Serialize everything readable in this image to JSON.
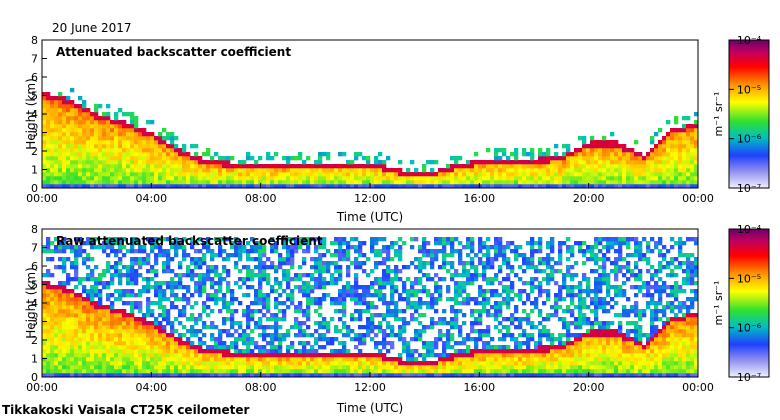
{
  "chart_data": [
    {
      "type": "heatmap",
      "title": "Attenuated backscatter coefficient",
      "date": "20 June 2017",
      "xlabel": "Time (UTC)",
      "ylabel": "Height (km)",
      "xlim_hours": [
        0,
        24
      ],
      "ylim_km": [
        0,
        8
      ],
      "xticks": [
        "00:00",
        "04:00",
        "08:00",
        "12:00",
        "16:00",
        "20:00",
        "00:00"
      ],
      "yticks": [
        0,
        1,
        2,
        3,
        4,
        5,
        6,
        7,
        8
      ],
      "colorbar": {
        "unit_label": "m⁻¹ sr⁻¹",
        "ticks": [
          "10⁻⁷",
          "10⁻⁶",
          "10⁻⁵",
          "10⁻⁴"
        ],
        "log10_range": [
          -7,
          -4
        ]
      },
      "layer_top_km": {
        "hours": [
          0,
          1,
          2,
          3,
          4,
          5,
          6,
          8,
          10,
          12,
          13,
          14,
          15,
          16,
          18,
          19,
          20,
          21,
          22,
          23,
          24
        ],
        "values": [
          5.2,
          4.8,
          4.0,
          3.6,
          3.0,
          2.1,
          1.5,
          1.3,
          1.4,
          1.4,
          1.0,
          0.8,
          1.2,
          1.5,
          1.6,
          1.7,
          2.5,
          2.5,
          1.8,
          3.2,
          3.5
        ]
      }
    },
    {
      "type": "heatmap",
      "title": "Raw attenuated backscatter coefficient",
      "xlabel": "Time (UTC)",
      "ylabel": "Height (km)",
      "xlim_hours": [
        0,
        24
      ],
      "ylim_km": [
        0,
        8
      ],
      "xticks": [
        "00:00",
        "04:00",
        "08:00",
        "12:00",
        "16:00",
        "20:00",
        "00:00"
      ],
      "yticks": [
        0,
        1,
        2,
        3,
        4,
        5,
        6,
        7,
        8
      ],
      "colorbar": {
        "unit_label": "m⁻¹ sr⁻¹",
        "ticks": [
          "10⁻⁷",
          "10⁻⁶",
          "10⁻⁵",
          "10⁻⁴"
        ],
        "log10_range": [
          -7,
          -4
        ]
      },
      "noise_above_layer": "noisy blue/green speckle up to 7.5 km"
    }
  ],
  "footer": "Tikkakoski Vaisala CT25K ceilometer"
}
